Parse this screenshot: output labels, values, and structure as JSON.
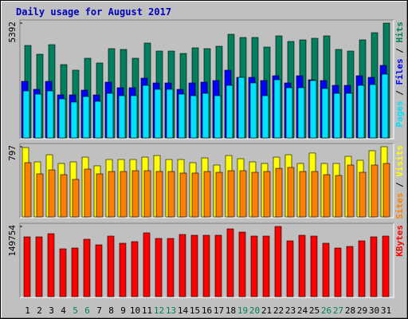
{
  "chart_data": [
    {
      "type": "bar",
      "title": "Daily usage for August 2017",
      "legend_separator": " / ",
      "ylim": [
        0,
        5392
      ],
      "yticks": [
        5392
      ],
      "series": [
        {
          "name": "Hits",
          "color": "#00805c",
          "values": [
            4343,
            3932,
            4381,
            3445,
            3183,
            3744,
            3520,
            4194,
            4156,
            3744,
            4456,
            4081,
            4081,
            3969,
            4231,
            4194,
            4306,
            4868,
            4718,
            4718,
            4269,
            4793,
            4531,
            4606,
            4681,
            4793,
            4156,
            4081,
            4606,
            4943,
            5392
          ]
        },
        {
          "name": "Files",
          "color": "#0000ff",
          "values": [
            2658,
            2284,
            2658,
            2022,
            2022,
            2247,
            2022,
            2621,
            2359,
            2359,
            2808,
            2584,
            2584,
            2284,
            2584,
            2621,
            2696,
            3183,
            2846,
            2846,
            2696,
            2921,
            2584,
            2921,
            2733,
            2696,
            2471,
            2471,
            2921,
            2846,
            3407
          ]
        },
        {
          "name": "Pages",
          "color": "#00e0ff",
          "values": [
            2209,
            2059,
            2209,
            1835,
            1685,
            1947,
            1722,
            2097,
            1984,
            1984,
            2471,
            2284,
            2284,
            2059,
            1984,
            2097,
            1984,
            2471,
            2846,
            2584,
            1984,
            2733,
            2359,
            2359,
            2696,
            2321,
            2097,
            2097,
            2471,
            2508,
            2995
          ]
        }
      ]
    },
    {
      "type": "bar",
      "legend_separator": " / ",
      "ylim": [
        0,
        797
      ],
      "yticks": [
        797
      ],
      "series": [
        {
          "name": "Visits",
          "color": "#ffff00",
          "values": [
            788,
            625,
            706,
            607,
            625,
            679,
            580,
            652,
            652,
            652,
            679,
            697,
            652,
            652,
            616,
            670,
            589,
            697,
            661,
            625,
            607,
            679,
            706,
            607,
            725,
            607,
            607,
            688,
            643,
            752,
            797
          ]
        },
        {
          "name": "Sites",
          "color": "#ff8000",
          "values": [
            616,
            489,
            534,
            480,
            426,
            543,
            489,
            516,
            516,
            525,
            525,
            516,
            516,
            498,
            498,
            516,
            507,
            525,
            525,
            507,
            516,
            552,
            562,
            516,
            516,
            480,
            471,
            589,
            507,
            589,
            607
          ]
        }
      ]
    },
    {
      "type": "bar",
      "ylim": [
        0,
        149754
      ],
      "yticks": [
        149754
      ],
      "categories": [
        "1",
        "2",
        "3",
        "4",
        "5",
        "6",
        "7",
        "8",
        "9",
        "10",
        "11",
        "12",
        "13",
        "14",
        "15",
        "16",
        "17",
        "18",
        "19",
        "20",
        "21",
        "22",
        "23",
        "24",
        "25",
        "26",
        "27",
        "28",
        "29",
        "30",
        "31"
      ],
      "category_label_colors": [
        "#000000",
        "#000000",
        "#000000",
        "#000000",
        "#00805c",
        "#00805c",
        "#000000",
        "#000000",
        "#000000",
        "#000000",
        "#000000",
        "#00805c",
        "#00805c",
        "#000000",
        "#000000",
        "#000000",
        "#000000",
        "#000000",
        "#00805c",
        "#00805c",
        "#000000",
        "#000000",
        "#000000",
        "#000000",
        "#000000",
        "#00805c",
        "#00805c",
        "#000000",
        "#000000",
        "#000000",
        "#000000"
      ],
      "series": [
        {
          "name": "KBytes",
          "color": "#ff0000",
          "values": [
            127628,
            127628,
            134434,
            102102,
            103804,
            122522,
            110611,
            129329,
            114014,
            117417,
            136136,
            124224,
            124224,
            132733,
            131031,
            131031,
            131031,
            144645,
            137838,
            129329,
            129329,
            149754,
            119119,
            131031,
            129329,
            114014,
            103804,
            107207,
            119119,
            127628,
            129329
          ]
        }
      ]
    }
  ]
}
